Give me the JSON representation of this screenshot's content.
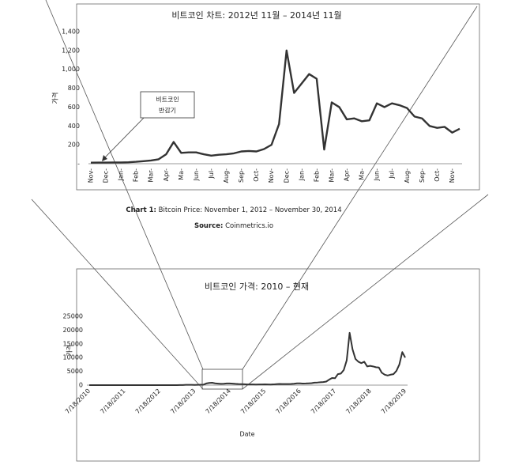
{
  "chart_data": [
    {
      "type": "line",
      "title": "비트코인 차트: 2012년 11월 – 2014년 11월",
      "y_label": "가격",
      "categories": [
        "Nov-",
        null,
        "Dec-",
        null,
        "Jan-",
        null,
        "Feb-",
        null,
        "Mar-",
        null,
        "Apr-",
        null,
        "Ma-",
        null,
        "Jun-",
        null,
        "Jul-",
        null,
        "Aug-",
        null,
        "Sep-",
        null,
        "Oct-",
        null,
        "Nov-",
        null,
        "Dec-",
        null,
        "Jan-",
        null,
        "Feb-",
        null,
        "Mar-",
        null,
        "Apr-",
        null,
        "Ma-",
        null,
        "Jun-",
        null,
        "Jul-",
        null,
        "Aug-",
        null,
        "Sep-",
        null,
        "Oct-",
        null,
        "Nov-",
        null
      ],
      "series": [
        {
          "name": "Bitcoin",
          "color": "#333333",
          "values": [
            11,
            12,
            12,
            13,
            13,
            15,
            20,
            27,
            34,
            47,
            100,
            230,
            115,
            120,
            120,
            100,
            85,
            95,
            100,
            110,
            130,
            135,
            130,
            155,
            200,
            420,
            1200,
            750,
            850,
            950,
            900,
            150,
            650,
            600,
            470,
            480,
            450,
            460,
            640,
            600,
            640,
            620,
            590,
            500,
            480,
            400,
            380,
            390,
            330,
            370
          ]
        }
      ],
      "ylim": [
        0,
        1400
      ],
      "yticks": [
        {
          "value": 0,
          "label": "-"
        },
        200,
        400,
        600,
        800,
        {
          "value": 1000,
          "label": "1,000"
        },
        {
          "value": 1200,
          "label": "1,200"
        },
        {
          "value": 1400,
          "label": "1,400"
        }
      ],
      "grid": false,
      "annotations": [
        {
          "text": [
            "비트코인",
            "반감기"
          ]
        }
      ]
    },
    {
      "type": "line",
      "title": "비트코인 가격: 2010 – 현재",
      "y_label": "가격",
      "x_label": "Date",
      "categories": [
        "7/18/2010",
        null,
        null,
        null,
        null,
        null,
        null,
        null,
        null,
        null,
        null,
        null,
        "7/18/2011",
        null,
        null,
        null,
        null,
        null,
        null,
        null,
        null,
        null,
        null,
        null,
        "7/18/2012",
        null,
        null,
        null,
        null,
        null,
        null,
        null,
        null,
        null,
        null,
        null,
        "7/18/2013",
        null,
        null,
        null,
        null,
        null,
        null,
        null,
        null,
        null,
        null,
        null,
        "7/18/2014",
        null,
        null,
        null,
        null,
        null,
        null,
        null,
        null,
        null,
        null,
        null,
        "7/18/2015",
        null,
        null,
        null,
        null,
        null,
        null,
        null,
        null,
        null,
        null,
        null,
        "7/18/2016",
        null,
        null,
        null,
        null,
        null,
        null,
        null,
        null,
        null,
        null,
        null,
        "7/18/2017",
        null,
        null,
        null,
        null,
        null,
        null,
        null,
        null,
        null,
        null,
        null,
        "7/18/2018",
        null,
        null,
        null,
        null,
        null,
        null,
        null,
        null,
        null,
        null,
        null,
        "7/18/2019"
      ],
      "series": [
        {
          "name": "Bitcoin",
          "color": "#333333",
          "values": [
            0,
            0,
            0,
            0,
            0,
            0,
            0,
            1,
            1,
            1,
            3,
            9,
            14,
            13,
            8,
            4,
            3,
            4,
            6,
            5,
            5,
            5,
            5,
            6,
            7,
            10,
            11,
            12,
            11,
            13,
            14,
            25,
            50,
            120,
            115,
            110,
            90,
            105,
            130,
            150,
            600,
            800,
            850,
            650,
            550,
            450,
            500,
            620,
            620,
            550,
            450,
            380,
            360,
            330,
            250,
            240,
            260,
            230,
            240,
            250,
            280,
            260,
            230,
            270,
            350,
            420,
            400,
            400,
            410,
            430,
            500,
            650,
            650,
            580,
            600,
            650,
            720,
            900,
            950,
            1050,
            1100,
            1300,
            2000,
            2600,
            2500,
            4000,
            4200,
            5500,
            9000,
            19000,
            13000,
            9500,
            8500,
            8000,
            8500,
            6800,
            7000,
            6800,
            6500,
            6400,
            4500,
            3800,
            3500,
            3800,
            4000,
            5200,
            7500,
            12000,
            10000
          ]
        }
      ],
      "ylim": [
        0,
        25000
      ],
      "yticks": [
        0,
        5000,
        10000,
        15000,
        20000,
        25000
      ],
      "grid": false
    }
  ],
  "caption": {
    "label": "Chart 1:",
    "text": "Bitcoin Price: November 1, 2012 – November 30, 2014"
  },
  "source": {
    "label": "Source:",
    "text": "Coinmetrics.io"
  }
}
